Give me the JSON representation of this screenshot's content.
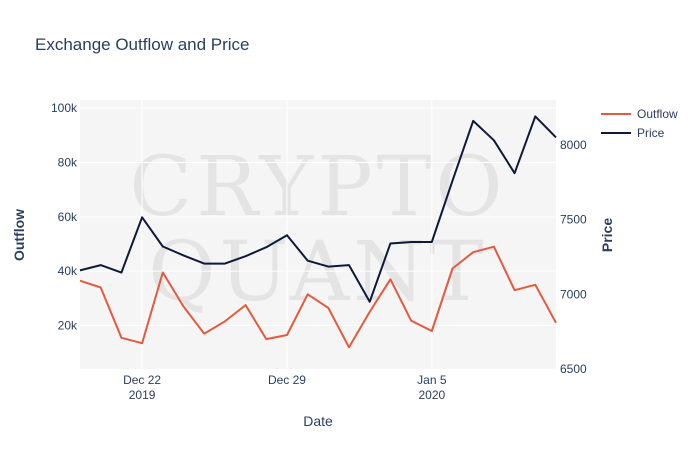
{
  "chart_data": {
    "type": "line",
    "title": "Exchange Outflow and Price",
    "xlabel": "Date",
    "ylabel_left": "Outflow",
    "ylabel_right": "Price",
    "watermark": [
      "CRYPTO",
      "QUANT"
    ],
    "x": [
      "2019-12-19",
      "2019-12-20",
      "2019-12-21",
      "2019-12-22",
      "2019-12-23",
      "2019-12-24",
      "2019-12-25",
      "2019-12-26",
      "2019-12-27",
      "2019-12-28",
      "2019-12-29",
      "2019-12-30",
      "2019-12-31",
      "2020-01-01",
      "2020-01-02",
      "2020-01-03",
      "2020-01-04",
      "2020-01-05",
      "2020-01-06",
      "2020-01-07",
      "2020-01-08",
      "2020-01-09",
      "2020-01-10",
      "2020-01-11"
    ],
    "x_ticks": [
      {
        "date": "2019-12-22",
        "label": "Dec 22",
        "sublabel": "2019"
      },
      {
        "date": "2019-12-29",
        "label": "Dec 29",
        "sublabel": ""
      },
      {
        "date": "2020-01-05",
        "label": "Jan 5",
        "sublabel": "2020"
      }
    ],
    "xlim": [
      "2019-12-19",
      "2020-01-11"
    ],
    "y_left_lim": [
      4000,
      103000
    ],
    "y_left_ticks": [
      20000,
      40000,
      60000,
      80000,
      100000
    ],
    "y_left_tick_labels": [
      "20k",
      "40k",
      "60k",
      "80k",
      "100k"
    ],
    "y_right_lim": [
      6500,
      8300
    ],
    "y_right_ticks": [
      6500,
      7000,
      7500,
      8000
    ],
    "y_right_tick_labels": [
      "6500",
      "7000",
      "7500",
      "8000"
    ],
    "grid": true,
    "legend_position": "top-right",
    "series": [
      {
        "name": "Outflow",
        "axis": "left",
        "color": "#e45a3f",
        "values": [
          36500,
          34000,
          15500,
          13500,
          39500,
          27000,
          17000,
          21500,
          27500,
          15000,
          16500,
          31500,
          26500,
          12000,
          25000,
          37000,
          21800,
          18000,
          41000,
          47000,
          49000,
          33000,
          35000,
          21000
        ]
      },
      {
        "name": "Price",
        "axis": "right",
        "color": "#0e1a3b",
        "values": [
          7160,
          7195,
          7145,
          7515,
          7320,
          7260,
          7205,
          7205,
          7255,
          7315,
          7395,
          7225,
          7185,
          7195,
          6950,
          7340,
          7350,
          7350,
          7760,
          8160,
          8030,
          7810,
          8190,
          8050
        ]
      }
    ]
  }
}
